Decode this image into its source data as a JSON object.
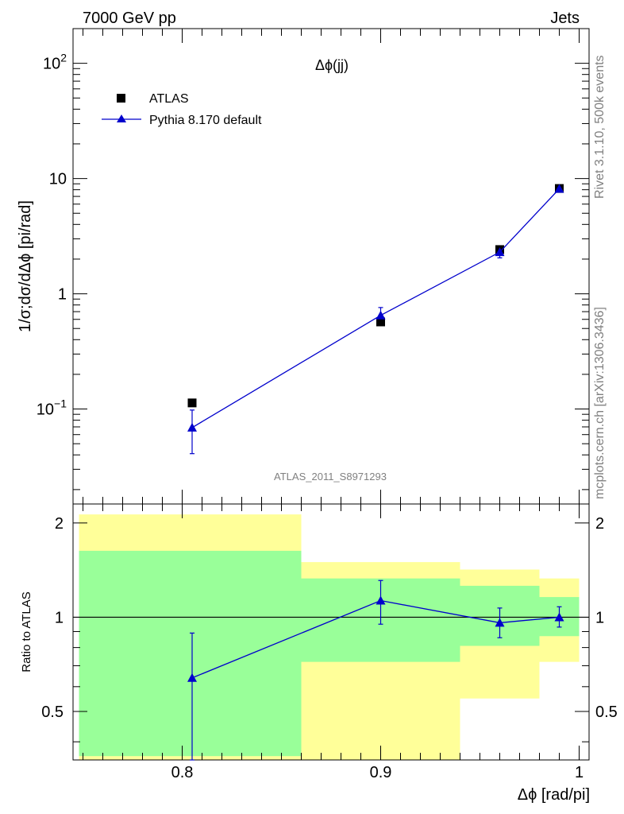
{
  "header": {
    "left": "7000 GeV pp",
    "right": "Jets"
  },
  "side_labels": {
    "rivet": "Rivet 3.1.10,  500k events",
    "source": "mcplots.cern.ch [arXiv:1306.3436]"
  },
  "chart_data": [
    {
      "type": "scatter",
      "title": "Δϕ(jj)",
      "watermark": "ATLAS_2011_S8971293",
      "ylabel": "1/σ;dσ/dΔϕ [pi/rad]",
      "yscale": "log",
      "ylim": [
        0.015,
        200
      ],
      "xlim": [
        0.745,
        1.005
      ],
      "y_ticks": [
        {
          "value": 100,
          "label": "10",
          "exp": "2"
        },
        {
          "value": 10,
          "label": "10",
          "exp": ""
        },
        {
          "value": 1,
          "label": "1",
          "exp": ""
        },
        {
          "value": 0.1,
          "label": "10",
          "exp": "−1"
        }
      ],
      "legend": {
        "placement": "top-left",
        "entries": [
          "ATLAS",
          "Pythia 8.170 default"
        ]
      },
      "series": [
        {
          "name": "ATLAS",
          "color": "#000000",
          "marker": "square",
          "x": [
            0.805,
            0.9,
            0.96,
            0.99
          ],
          "y": [
            0.113,
            0.57,
            2.42,
            8.2
          ]
        },
        {
          "name": "Pythia 8.170 default",
          "color": "#0000cc",
          "marker": "triangle",
          "x": [
            0.805,
            0.9,
            0.96,
            0.99
          ],
          "y": [
            0.069,
            0.65,
            2.3,
            8.15
          ],
          "y_err_low": [
            0.041,
            0.56,
            2.05,
            7.8
          ],
          "y_err_high": [
            0.098,
            0.76,
            2.55,
            8.5
          ]
        }
      ]
    },
    {
      "type": "line",
      "ylabel": "Ratio to ATLAS",
      "xlabel": "Δϕ [rad/pi]",
      "ylim": [
        0.35,
        2.3
      ],
      "xlim": [
        0.745,
        1.005
      ],
      "x_ticks": [
        0.8,
        0.9,
        1.0
      ],
      "x_tick_labels": [
        "0.8",
        "0.9",
        "1"
      ],
      "y_ticks": [
        0.5,
        1,
        2
      ],
      "y_tick_labels": [
        "0.5",
        "1",
        "2"
      ],
      "reference_line": 1,
      "bands": [
        {
          "x": [
            0.748,
            0.86
          ],
          "yellow": [
            0.35,
            2.13
          ],
          "green": [
            0.36,
            1.63
          ]
        },
        {
          "x": [
            0.86,
            0.94
          ],
          "yellow": [
            0.35,
            1.5
          ],
          "green": [
            0.72,
            1.33
          ]
        },
        {
          "x": [
            0.94,
            0.98
          ],
          "yellow": [
            0.55,
            1.42
          ],
          "green": [
            0.81,
            1.26
          ]
        },
        {
          "x": [
            0.98,
            1.0
          ],
          "yellow": [
            0.72,
            1.33
          ],
          "green": [
            0.87,
            1.16
          ]
        }
      ],
      "series": [
        {
          "name": "Pythia 8.170 default",
          "color": "#0000cc",
          "x": [
            0.805,
            0.9,
            0.96,
            0.99
          ],
          "y": [
            0.64,
            1.13,
            0.96,
            1.0
          ],
          "y_err_low": [
            0.35,
            0.95,
            0.86,
            0.93
          ],
          "y_err_high": [
            0.89,
            1.31,
            1.07,
            1.08
          ]
        }
      ]
    }
  ]
}
